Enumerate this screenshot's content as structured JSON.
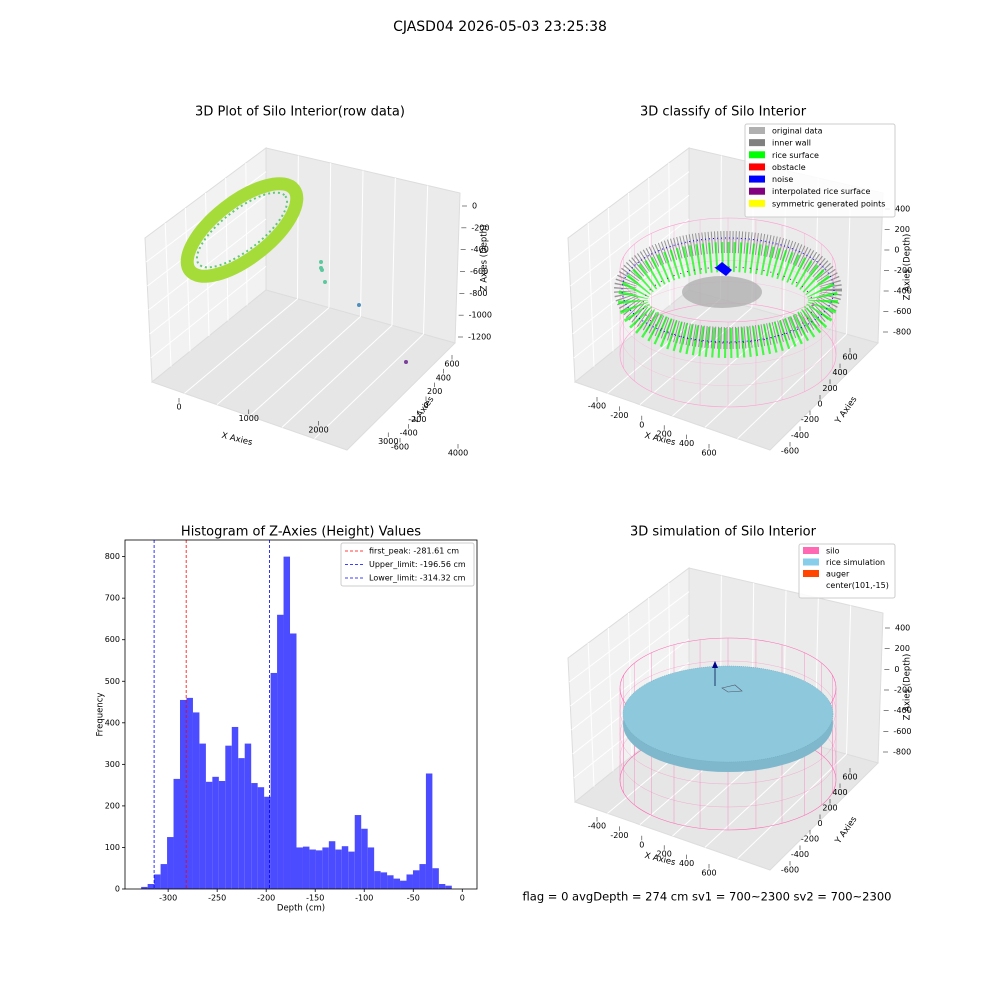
{
  "title": "CJASD04 2026-05-03 23:25:38",
  "footer": "flag = 0     avgDepth = 274 cm  sv1 = 700~2300  sv2 = 700~2300",
  "chart_data": [
    {
      "type": "scatter3d",
      "title": "3D Plot of Silo Interior(row data)",
      "xlabel": "X Axies",
      "ylabel": "Y Axies",
      "zlabel": "Z Axies (Depth)",
      "xticks": [
        0,
        1000,
        2000,
        3000,
        4000
      ],
      "yticks": [
        -600,
        -400,
        -200,
        0,
        200,
        400,
        600
      ],
      "zticks": [
        -1200,
        -1000,
        -800,
        -600,
        -400,
        -200,
        0
      ]
    },
    {
      "type": "scatter3d",
      "title": "3D classify of Silo Interior",
      "xlabel": "X Axies",
      "ylabel": "Y Axies",
      "zlabel": "Z Axies (Depth)",
      "xticks": [
        -400,
        -200,
        0,
        200,
        400,
        600
      ],
      "yticks": [
        -600,
        -400,
        -200,
        0,
        200,
        400,
        600
      ],
      "zticks": [
        -800,
        -600,
        -400,
        -200,
        0,
        200,
        400
      ],
      "series": [
        {
          "name": "original data",
          "color": "#b0b0b0"
        },
        {
          "name": "inner wall",
          "color": "#808080"
        },
        {
          "name": "rice surface",
          "color": "#00ff00"
        },
        {
          "name": "obstacle",
          "color": "#ff0000"
        },
        {
          "name": "noise",
          "color": "#0000ff"
        },
        {
          "name": "interpolated rice surface",
          "color": "#800080"
        },
        {
          "name": "symmetric generated points",
          "color": "#ffff00"
        }
      ]
    },
    {
      "type": "histogram",
      "title": "Histogram of Z-Axies (Height) Values",
      "xlabel": "Depth (cm)",
      "ylabel": "Frequency",
      "color": "#4b4bff",
      "bins": [
        -327.5,
        -320.9,
        -314.3,
        -307.7,
        -301.1,
        -294.5,
        -287.9,
        -281.3,
        -274.7,
        -268.1,
        -261.5,
        -254.9,
        -248.3,
        -241.7,
        -235.1,
        -228.5,
        -221.9,
        -215.3,
        -208.7,
        -202.1,
        -195.5,
        -188.9,
        -182.3,
        -175.7,
        -169.1,
        -162.5,
        -155.9,
        -149.3,
        -142.7,
        -136.1,
        -129.5,
        -122.9,
        -116.3,
        -109.7,
        -103.1,
        -96.5,
        -89.9,
        -83.3,
        -76.7,
        -70.1,
        -63.5,
        -56.9,
        -50.3,
        -43.7,
        -37.1,
        -30.5,
        -23.9,
        -17.3,
        -10.7
      ],
      "values": [
        5,
        12,
        35,
        60,
        125,
        265,
        455,
        460,
        425,
        350,
        258,
        270,
        260,
        345,
        390,
        315,
        350,
        255,
        245,
        222,
        520,
        660,
        800,
        615,
        100,
        102,
        95,
        93,
        100,
        115,
        95,
        103,
        90,
        178,
        145,
        100,
        43,
        40,
        33,
        25,
        20,
        35,
        45,
        60,
        278,
        50,
        12,
        8
      ],
      "xlim": [
        -344,
        15
      ],
      "xticks": [
        -300,
        -250,
        -200,
        -150,
        -100,
        -50,
        0
      ],
      "ylim": [
        0,
        840
      ],
      "yticks": [
        0,
        100,
        200,
        300,
        400,
        500,
        600,
        700,
        800
      ],
      "vlines": [
        {
          "name": "first_peak: -281.61 cm",
          "value": -281.61,
          "color": "#ff0000"
        },
        {
          "name": "Upper_limit: -196.56 cm",
          "value": -196.56,
          "color": "#0000ff"
        },
        {
          "name": "Lower_limit: -314.32 cm",
          "value": -314.32,
          "color": "#0000ff"
        }
      ],
      "legend": "upper right"
    },
    {
      "type": "scatter3d",
      "title": "3D simulation of Silo Interior",
      "xlabel": "X Axies",
      "ylabel": "Y Axies",
      "zlabel": "Z Axies (Depth)",
      "xticks": [
        -400,
        -200,
        0,
        200,
        400,
        600
      ],
      "yticks": [
        -600,
        -400,
        -200,
        0,
        200,
        400,
        600
      ],
      "zticks": [
        -800,
        -600,
        -400,
        -200,
        0,
        200,
        400
      ],
      "series": [
        {
          "name": "silo",
          "color": "#ff69b4"
        },
        {
          "name": "rice simulation",
          "color": "#87ceeb"
        },
        {
          "name": "auger",
          "color": "#ff4500"
        },
        {
          "name": "center(101,-15)"
        }
      ]
    }
  ]
}
